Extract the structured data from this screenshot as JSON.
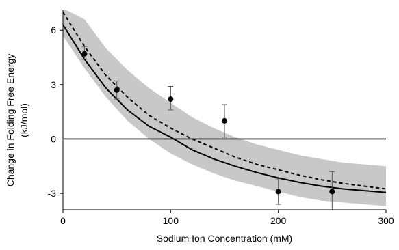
{
  "chart_data": {
    "type": "scatter",
    "title": "",
    "xlabel": "Sodium Ion Concentration (mM)",
    "ylabel_lines": [
      "Change in Folding Free Energy",
      "(kJ/mol)"
    ],
    "xlim": [
      0,
      300
    ],
    "ylim": [
      -3.9,
      7.1
    ],
    "xticks": [
      0,
      100,
      200,
      300
    ],
    "yticks": [
      -3,
      0,
      3,
      6
    ],
    "grid": false,
    "reference_line_y": 0,
    "points": [
      {
        "x": 20,
        "y": 4.7,
        "err_low": 4.4,
        "err_high": 5.1
      },
      {
        "x": 50,
        "y": 2.7,
        "err_low": 2.2,
        "err_high": 3.2
      },
      {
        "x": 100,
        "y": 2.2,
        "err_low": 1.6,
        "err_high": 2.9
      },
      {
        "x": 150,
        "y": 1.0,
        "err_low": 0.1,
        "err_high": 1.9
      },
      {
        "x": 200,
        "y": -2.9,
        "err_low": -3.6,
        "err_high": -2.2
      },
      {
        "x": 250,
        "y": -2.9,
        "err_low": -3.9,
        "err_high": -1.8
      }
    ],
    "fit_solid": {
      "x": [
        0,
        20,
        40,
        60,
        80,
        100,
        120,
        140,
        160,
        180,
        200,
        220,
        240,
        260,
        280,
        300
      ],
      "y": [
        6.3,
        4.4,
        2.8,
        1.6,
        0.7,
        0.1,
        -0.6,
        -1.1,
        -1.5,
        -1.85,
        -2.15,
        -2.4,
        -2.6,
        -2.75,
        -2.85,
        -2.95
      ]
    },
    "fit_dashed": {
      "x": [
        0,
        20,
        40,
        60,
        80,
        100,
        120,
        140,
        160,
        180,
        200,
        220,
        240,
        260,
        280,
        300
      ],
      "y": [
        7.0,
        5.1,
        3.5,
        2.3,
        1.3,
        0.6,
        0.0,
        -0.5,
        -1.0,
        -1.4,
        -1.7,
        -2.0,
        -2.25,
        -2.45,
        -2.6,
        -2.75
      ]
    },
    "band": {
      "x": [
        0,
        20,
        40,
        60,
        80,
        100,
        120,
        140,
        160,
        180,
        200,
        220,
        240,
        260,
        280,
        300
      ],
      "upper": [
        7.2,
        6.6,
        5.0,
        3.8,
        2.8,
        2.0,
        1.2,
        0.6,
        0.1,
        -0.3,
        -0.6,
        -0.9,
        -1.1,
        -1.3,
        -1.4,
        -1.5
      ],
      "lower": [
        5.7,
        3.9,
        2.3,
        1.0,
        0.0,
        -0.8,
        -1.4,
        -1.9,
        -2.3,
        -2.6,
        -2.9,
        -3.2,
        -3.4,
        -3.5,
        -3.6,
        -3.7
      ]
    },
    "colors": {
      "band": "#c8c8c8",
      "line": "#000000",
      "marker": "#000000",
      "errorbar": "#555555",
      "axis": "#000000"
    }
  }
}
